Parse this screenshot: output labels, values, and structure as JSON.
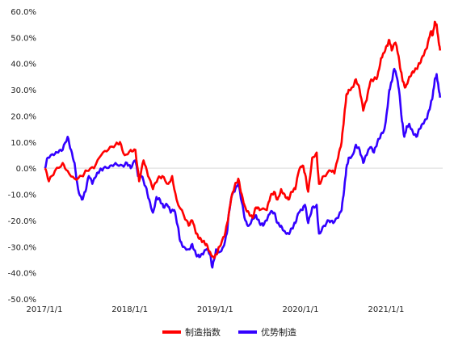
{
  "chart_data": {
    "type": "line",
    "title": "",
    "xlabel": "",
    "ylabel": "",
    "ylim": [
      -0.5,
      0.6
    ],
    "xlim": [
      "2017-01-01",
      "2021-08-31"
    ],
    "y_ticks": [
      "60.0%",
      "50.0%",
      "40.0%",
      "30.0%",
      "20.0%",
      "10.0%",
      "0.0%",
      "-10.0%",
      "-20.0%",
      "-30.0%",
      "-40.0%",
      "-50.0%"
    ],
    "x_ticks": [
      "2017/1/1",
      "2018/1/1",
      "2019/1/1",
      "2020/1/1",
      "2021/1/1"
    ],
    "grid": false,
    "legend_position": "bottom",
    "series": [
      {
        "name": "制造指数",
        "color": "#ff0000",
        "points": [
          [
            "2017-01-03",
            0.0
          ],
          [
            "2017-01-20",
            -0.05
          ],
          [
            "2017-02-15",
            -0.01
          ],
          [
            "2017-03-20",
            0.02
          ],
          [
            "2017-04-10",
            -0.01
          ],
          [
            "2017-05-10",
            -0.04
          ],
          [
            "2017-06-10",
            -0.03
          ],
          [
            "2017-07-01",
            -0.01
          ],
          [
            "2017-08-01",
            0.0
          ],
          [
            "2017-09-01",
            0.05
          ],
          [
            "2017-10-01",
            0.07
          ],
          [
            "2017-11-01",
            0.09
          ],
          [
            "2017-11-20",
            0.1
          ],
          [
            "2017-12-10",
            0.05
          ],
          [
            "2018-01-05",
            0.07
          ],
          [
            "2018-01-25",
            0.07
          ],
          [
            "2018-02-10",
            -0.05
          ],
          [
            "2018-03-01",
            0.03
          ],
          [
            "2018-03-20",
            -0.03
          ],
          [
            "2018-04-10",
            -0.08
          ],
          [
            "2018-05-01",
            -0.04
          ],
          [
            "2018-05-20",
            -0.03
          ],
          [
            "2018-06-15",
            -0.06
          ],
          [
            "2018-07-01",
            -0.03
          ],
          [
            "2018-07-20",
            -0.12
          ],
          [
            "2018-08-20",
            -0.18
          ],
          [
            "2018-09-10",
            -0.22
          ],
          [
            "2018-09-25",
            -0.2
          ],
          [
            "2018-10-11",
            -0.25
          ],
          [
            "2018-10-25",
            -0.27
          ],
          [
            "2018-11-10",
            -0.28
          ],
          [
            "2018-11-25",
            -0.29
          ],
          [
            "2018-12-10",
            -0.32
          ],
          [
            "2018-12-25",
            -0.34
          ],
          [
            "2019-01-05",
            -0.33
          ],
          [
            "2019-01-20",
            -0.3
          ],
          [
            "2019-02-10",
            -0.26
          ],
          [
            "2019-02-25",
            -0.2
          ],
          [
            "2019-03-10",
            -0.12
          ],
          [
            "2019-03-25",
            -0.07
          ],
          [
            "2019-04-10",
            -0.04
          ],
          [
            "2019-04-25",
            -0.1
          ],
          [
            "2019-05-10",
            -0.15
          ],
          [
            "2019-05-25",
            -0.17
          ],
          [
            "2019-06-10",
            -0.19
          ],
          [
            "2019-06-25",
            -0.15
          ],
          [
            "2019-07-10",
            -0.16
          ],
          [
            "2019-08-10",
            -0.16
          ],
          [
            "2019-08-25",
            -0.11
          ],
          [
            "2019-09-10",
            -0.09
          ],
          [
            "2019-09-25",
            -0.12
          ],
          [
            "2019-10-10",
            -0.08
          ],
          [
            "2019-10-25",
            -0.1
          ],
          [
            "2019-11-10",
            -0.12
          ],
          [
            "2019-11-25",
            -0.09
          ],
          [
            "2019-12-10",
            -0.08
          ],
          [
            "2019-12-25",
            -0.01
          ],
          [
            "2020-01-10",
            0.01
          ],
          [
            "2020-01-20",
            -0.02
          ],
          [
            "2020-02-03",
            -0.09
          ],
          [
            "2020-02-20",
            0.04
          ],
          [
            "2020-03-10",
            0.06
          ],
          [
            "2020-03-20",
            -0.06
          ],
          [
            "2020-04-10",
            -0.03
          ],
          [
            "2020-05-10",
            -0.01
          ],
          [
            "2020-05-25",
            -0.02
          ],
          [
            "2020-06-10",
            0.04
          ],
          [
            "2020-06-25",
            0.1
          ],
          [
            "2020-07-06",
            0.2
          ],
          [
            "2020-07-15",
            0.28
          ],
          [
            "2020-07-25",
            0.3
          ],
          [
            "2020-08-10",
            0.31
          ],
          [
            "2020-08-25",
            0.34
          ],
          [
            "2020-09-10",
            0.3
          ],
          [
            "2020-09-25",
            0.22
          ],
          [
            "2020-10-10",
            0.26
          ],
          [
            "2020-10-25",
            0.33
          ],
          [
            "2020-11-10",
            0.34
          ],
          [
            "2020-11-25",
            0.35
          ],
          [
            "2020-12-10",
            0.42
          ],
          [
            "2020-12-20",
            0.44
          ],
          [
            "2021-01-05",
            0.47
          ],
          [
            "2021-01-15",
            0.49
          ],
          [
            "2021-01-25",
            0.45
          ],
          [
            "2021-02-10",
            0.48
          ],
          [
            "2021-02-20",
            0.44
          ],
          [
            "2021-03-05",
            0.37
          ],
          [
            "2021-03-15",
            0.33
          ],
          [
            "2021-03-25",
            0.31
          ],
          [
            "2021-04-10",
            0.35
          ],
          [
            "2021-04-25",
            0.37
          ],
          [
            "2021-05-10",
            0.38
          ],
          [
            "2021-05-25",
            0.4
          ],
          [
            "2021-06-10",
            0.43
          ],
          [
            "2021-06-25",
            0.46
          ],
          [
            "2021-07-10",
            0.52
          ],
          [
            "2021-07-20",
            0.51
          ],
          [
            "2021-07-28",
            0.56
          ],
          [
            "2021-08-05",
            0.55
          ],
          [
            "2021-08-12",
            0.5
          ],
          [
            "2021-08-20",
            0.45
          ]
        ]
      },
      {
        "name": "优势制造",
        "color": "#3300ff",
        "points": [
          [
            "2017-01-03",
            0.0
          ],
          [
            "2017-01-15",
            0.04
          ],
          [
            "2017-02-10",
            0.05
          ],
          [
            "2017-03-01",
            0.06
          ],
          [
            "2017-03-20",
            0.07
          ],
          [
            "2017-04-10",
            0.12
          ],
          [
            "2017-04-25",
            0.07
          ],
          [
            "2017-05-10",
            0.02
          ],
          [
            "2017-05-25",
            -0.08
          ],
          [
            "2017-06-10",
            -0.12
          ],
          [
            "2017-06-25",
            -0.09
          ],
          [
            "2017-07-10",
            -0.03
          ],
          [
            "2017-07-25",
            -0.06
          ],
          [
            "2017-08-10",
            -0.03
          ],
          [
            "2017-08-25",
            -0.01
          ],
          [
            "2017-09-10",
            0.0
          ],
          [
            "2017-10-10",
            0.01
          ],
          [
            "2017-11-01",
            0.02
          ],
          [
            "2017-12-01",
            0.01
          ],
          [
            "2017-12-20",
            0.02
          ],
          [
            "2018-01-05",
            0.0
          ],
          [
            "2018-01-25",
            0.03
          ],
          [
            "2018-02-05",
            -0.03
          ],
          [
            "2018-02-20",
            -0.03
          ],
          [
            "2018-03-10",
            -0.07
          ],
          [
            "2018-03-25",
            -0.12
          ],
          [
            "2018-04-10",
            -0.17
          ],
          [
            "2018-04-25",
            -0.11
          ],
          [
            "2018-05-10",
            -0.12
          ],
          [
            "2018-05-25",
            -0.15
          ],
          [
            "2018-06-10",
            -0.14
          ],
          [
            "2018-06-25",
            -0.17
          ],
          [
            "2018-07-10",
            -0.16
          ],
          [
            "2018-07-25",
            -0.22
          ],
          [
            "2018-08-05",
            -0.28
          ],
          [
            "2018-08-20",
            -0.3
          ],
          [
            "2018-09-10",
            -0.31
          ],
          [
            "2018-09-25",
            -0.29
          ],
          [
            "2018-10-11",
            -0.33
          ],
          [
            "2018-10-25",
            -0.34
          ],
          [
            "2018-11-10",
            -0.33
          ],
          [
            "2018-11-25",
            -0.31
          ],
          [
            "2018-12-10",
            -0.33
          ],
          [
            "2018-12-20",
            -0.38
          ],
          [
            "2019-01-05",
            -0.31
          ],
          [
            "2019-01-20",
            -0.32
          ],
          [
            "2019-02-05",
            -0.3
          ],
          [
            "2019-02-20",
            -0.25
          ],
          [
            "2019-03-01",
            -0.17
          ],
          [
            "2019-03-15",
            -0.1
          ],
          [
            "2019-03-25",
            -0.09
          ],
          [
            "2019-04-10",
            -0.06
          ],
          [
            "2019-04-25",
            -0.13
          ],
          [
            "2019-05-10",
            -0.2
          ],
          [
            "2019-05-25",
            -0.22
          ],
          [
            "2019-06-10",
            -0.19
          ],
          [
            "2019-06-25",
            -0.18
          ],
          [
            "2019-07-10",
            -0.21
          ],
          [
            "2019-07-25",
            -0.22
          ],
          [
            "2019-08-10",
            -0.2
          ],
          [
            "2019-08-25",
            -0.17
          ],
          [
            "2019-09-10",
            -0.17
          ],
          [
            "2019-09-25",
            -0.21
          ],
          [
            "2019-10-10",
            -0.22
          ],
          [
            "2019-10-25",
            -0.24
          ],
          [
            "2019-11-10",
            -0.25
          ],
          [
            "2019-11-25",
            -0.23
          ],
          [
            "2019-12-10",
            -0.21
          ],
          [
            "2019-12-25",
            -0.17
          ],
          [
            "2020-01-10",
            -0.16
          ],
          [
            "2020-01-20",
            -0.14
          ],
          [
            "2020-02-03",
            -0.21
          ],
          [
            "2020-02-20",
            -0.15
          ],
          [
            "2020-03-10",
            -0.14
          ],
          [
            "2020-03-20",
            -0.25
          ],
          [
            "2020-04-10",
            -0.22
          ],
          [
            "2020-05-01",
            -0.2
          ],
          [
            "2020-05-20",
            -0.21
          ],
          [
            "2020-06-10",
            -0.19
          ],
          [
            "2020-06-25",
            -0.16
          ],
          [
            "2020-07-06",
            -0.08
          ],
          [
            "2020-07-15",
            0.0
          ],
          [
            "2020-07-25",
            0.04
          ],
          [
            "2020-08-10",
            0.05
          ],
          [
            "2020-08-25",
            0.09
          ],
          [
            "2020-09-10",
            0.07
          ],
          [
            "2020-09-25",
            0.02
          ],
          [
            "2020-10-10",
            0.05
          ],
          [
            "2020-10-25",
            0.08
          ],
          [
            "2020-11-10",
            0.06
          ],
          [
            "2020-11-25",
            0.1
          ],
          [
            "2020-12-10",
            0.13
          ],
          [
            "2020-12-25",
            0.15
          ],
          [
            "2021-01-05",
            0.22
          ],
          [
            "2021-01-15",
            0.3
          ],
          [
            "2021-01-25",
            0.33
          ],
          [
            "2021-02-05",
            0.38
          ],
          [
            "2021-02-15",
            0.35
          ],
          [
            "2021-02-25",
            0.3
          ],
          [
            "2021-03-10",
            0.18
          ],
          [
            "2021-03-20",
            0.12
          ],
          [
            "2021-03-30",
            0.16
          ],
          [
            "2021-04-10",
            0.17
          ],
          [
            "2021-04-25",
            0.14
          ],
          [
            "2021-05-10",
            0.12
          ],
          [
            "2021-05-25",
            0.15
          ],
          [
            "2021-06-10",
            0.17
          ],
          [
            "2021-06-25",
            0.19
          ],
          [
            "2021-07-10",
            0.24
          ],
          [
            "2021-07-20",
            0.28
          ],
          [
            "2021-07-28",
            0.34
          ],
          [
            "2021-08-05",
            0.36
          ],
          [
            "2021-08-12",
            0.32
          ],
          [
            "2021-08-20",
            0.27
          ]
        ]
      }
    ]
  }
}
